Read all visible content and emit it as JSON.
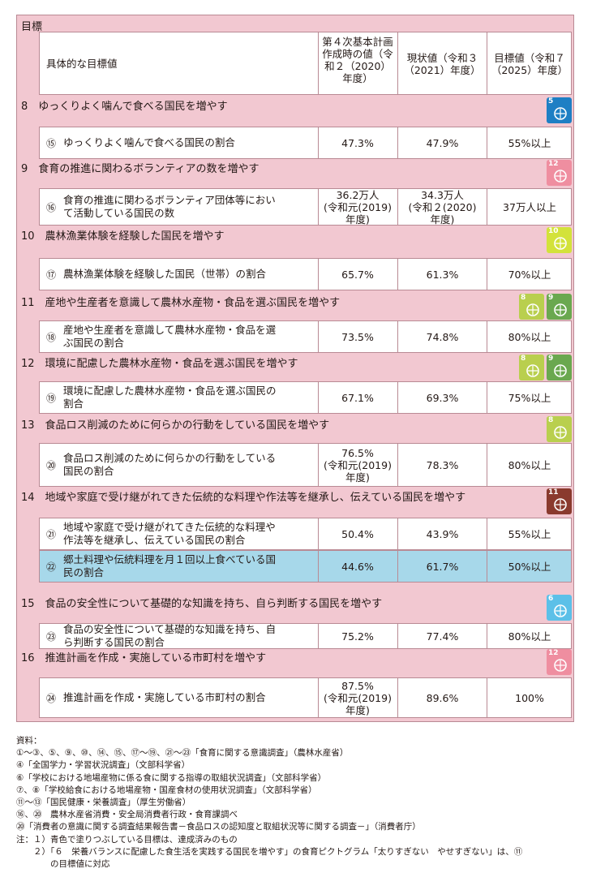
{
  "header": {
    "title": "目標",
    "col_target": "具体的な目標値",
    "col_baseline": [
      "第４次基本計画",
      "作成時の値（令",
      "和２（2020）",
      "年度）"
    ],
    "col_current": [
      "現状値（令和３",
      "（2021）年度）"
    ],
    "col_goal": [
      "目標値（令和７",
      "（2025）年度）"
    ]
  },
  "goals": [
    {
      "title": "8　ゆっくりよく噛んで食べる国民を増やす",
      "icons": [
        {
          "label": "5",
          "color": "#1e7fc4",
          "name": "sdg5-icon"
        }
      ],
      "rows": [
        {
          "num": "⑮",
          "desc": [
            "ゆっくりよく噛んで食べる国民の割合"
          ],
          "baseline": [
            "47.3%"
          ],
          "current": [
            "47.9%"
          ],
          "goal": [
            "55%以上"
          ]
        }
      ]
    },
    {
      "title": "9　食育の推進に関わるボランティアの数を増やす",
      "icons": [
        {
          "label": "12",
          "color": "#ef8ea0",
          "name": "sdg12-icon"
        }
      ],
      "rows": [
        {
          "num": "⑯",
          "desc": [
            "食育の推進に関わるボランティア団体等におい",
            "て活動している国民の数"
          ],
          "baseline": [
            "36.2万人",
            "(令和元(2019)",
            "年度)"
          ],
          "current": [
            "34.3万人",
            "(令和２(2020)",
            "年度)"
          ],
          "goal": [
            "37万人以上"
          ]
        }
      ]
    },
    {
      "title": "10　農林漁業体験を経験した国民を増やす",
      "icons": [
        {
          "label": "10",
          "color": "#d3e23a",
          "name": "sdg10-icon"
        }
      ],
      "rows": [
        {
          "num": "⑰",
          "desc": [
            "農林漁業体験を経験した国民（世帯）の割合"
          ],
          "baseline": [
            "65.7%"
          ],
          "current": [
            "61.3%"
          ],
          "goal": [
            "70%以上"
          ]
        }
      ]
    },
    {
      "title": "11　産地や生産者を意識して農林水産物・食品を選ぶ国民を増やす",
      "icons": [
        {
          "label": "8",
          "color": "#b9cf4e",
          "name": "sdg8-icon"
        },
        {
          "label": "9",
          "color": "#6aa84f",
          "name": "sdg9-icon"
        }
      ],
      "rows": [
        {
          "num": "⑱",
          "desc": [
            "産地や生産者を意識して農林水産物・食品を選",
            "ぶ国民の割合"
          ],
          "baseline": [
            "73.5%"
          ],
          "current": [
            "74.8%"
          ],
          "goal": [
            "80%以上"
          ]
        }
      ]
    },
    {
      "title": "12　環境に配慮した農林水産物・食品を選ぶ国民を増やす",
      "icons": [
        {
          "label": "8",
          "color": "#b9cf4e",
          "name": "sdg8-icon"
        },
        {
          "label": "9",
          "color": "#6aa84f",
          "name": "sdg9-icon"
        }
      ],
      "rows": [
        {
          "num": "⑲",
          "desc": [
            "環境に配慮した農林水産物・食品を選ぶ国民の",
            "割合"
          ],
          "baseline": [
            "67.1%"
          ],
          "current": [
            "69.3%"
          ],
          "goal": [
            "75%以上"
          ]
        }
      ]
    },
    {
      "title": "13　食品ロス削減のために何らかの行動をしている国民を増やす",
      "icons": [
        {
          "label": "8",
          "color": "#b9cf4e",
          "name": "sdg8-icon"
        }
      ],
      "rows": [
        {
          "num": "⑳",
          "desc": [
            "食品ロス削減のために何らかの行動をしている",
            "国民の割合"
          ],
          "baseline": [
            "76.5%",
            "(令和元(2019)",
            "年度)"
          ],
          "current": [
            "78.3%"
          ],
          "goal": [
            "80%以上"
          ]
        }
      ]
    },
    {
      "title": "14　地域や家庭で受け継がれてきた伝統的な料理や作法等を継承し、伝えている国民を増やす",
      "icons": [
        {
          "label": "11",
          "color": "#8a3a2e",
          "name": "sdg11-icon"
        }
      ],
      "rows": [
        {
          "num": "㉑",
          "desc": [
            "地域や家庭で受け継がれてきた伝統的な料理や",
            "作法等を継承し、伝えている国民の割合"
          ],
          "baseline": [
            "50.4%"
          ],
          "current": [
            "43.9%"
          ],
          "goal": [
            "55%以上"
          ]
        },
        {
          "num": "㉒",
          "desc": [
            "郷土料理や伝統料理を月１回以上食べている国",
            "民の割合"
          ],
          "baseline": [
            "44.6%"
          ],
          "current": [
            "61.7%"
          ],
          "goal": [
            "50%以上"
          ],
          "highlight": true
        }
      ]
    },
    {
      "title": "15　食品の安全性について基礎的な知識を持ち、自ら判断する国民を増やす",
      "icons": [
        {
          "label": "6",
          "color": "#5cc0e8",
          "name": "sdg6-icon"
        }
      ],
      "rows": [
        {
          "num": "㉓",
          "desc": [
            "食品の安全性について基礎的な知識を持ち、自",
            "ら判断する国民の割合"
          ],
          "baseline": [
            "75.2%"
          ],
          "current": [
            "77.4%"
          ],
          "goal": [
            "80%以上"
          ]
        }
      ]
    },
    {
      "title": "16　推進計画を作成・実施している市町村を増やす",
      "icons": [
        {
          "label": "12",
          "color": "#ef8ea0",
          "name": "sdg12-icon"
        }
      ],
      "rows": [
        {
          "num": "㉔",
          "desc": [
            "推進計画を作成・実施している市町村の割合"
          ],
          "baseline": [
            "87.5%",
            "(令和元(2019)",
            "年度)"
          ],
          "current": [
            "89.6%"
          ],
          "goal": [
            "100%"
          ]
        }
      ]
    }
  ],
  "notes": [
    "資料：",
    "①〜③、⑤、⑨、⑩、⑭、⑮、⑰〜⑲、㉑〜㉓「食育に関する意識調査」（農林水産省）",
    "④「全国学力・学習状況調査」（文部科学省）",
    "⑥「学校における地場産物に係る食に関する指導の取組状況調査」（文部科学省）",
    "⑦、⑧「学校給食における地場産物・国産食材の使用状況調査」（文部科学省）",
    "⑪〜⑬「国民健康・栄養調査」（厚生労働省）",
    "⑯、⑳　農林水産省消費・安全局消費者行政・食育課調べ",
    "⑳「消費者の意識に関する調査結果報告書－食品ロスの認知度と取組状況等に関する調査－」（消費者庁）",
    "注：１）青色で塗りつぶしている目標は、達成済みのもの",
    "　　２）「６　栄養バランスに配慮した食生活を実践する国民を増やす」の食育ピクトグラム「太りすぎない　やせすぎない」は、⑪",
    "　　　　の目標値に対応"
  ]
}
